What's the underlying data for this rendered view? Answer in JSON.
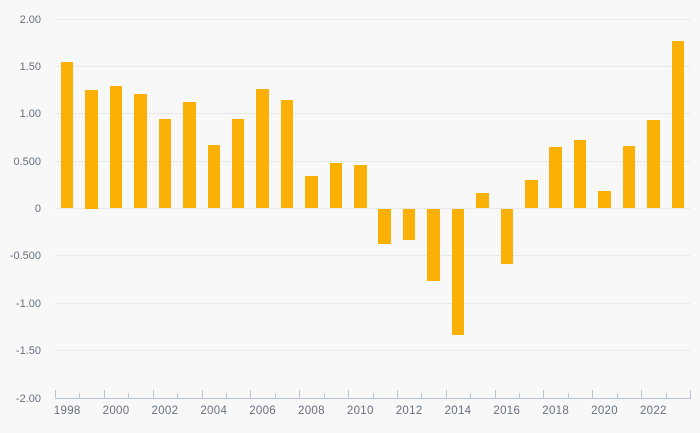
{
  "chart_data": {
    "type": "bar",
    "title": "",
    "xlabel": "",
    "ylabel": "",
    "categories": [
      "1998",
      "1999",
      "2000",
      "2001",
      "2002",
      "2003",
      "2004",
      "2005",
      "2006",
      "2007",
      "2008",
      "2009",
      "2010",
      "2011",
      "2012",
      "2013",
      "2014",
      "2015",
      "2016",
      "2017",
      "2018",
      "2019",
      "2020",
      "2021",
      "2022",
      "2023"
    ],
    "values": [
      1.55,
      1.25,
      1.29,
      1.21,
      0.94,
      1.12,
      0.67,
      0.94,
      1.26,
      1.14,
      0.34,
      0.48,
      0.46,
      -0.37,
      -0.33,
      -0.76,
      -1.34,
      0.16,
      -0.59,
      0.3,
      0.65,
      0.72,
      0.18,
      0.66,
      0.93,
      1.77
    ],
    "ylim": [
      -2,
      2
    ],
    "yticks": [
      2,
      1.5,
      1,
      0.5,
      0,
      -0.5,
      -1,
      -1.5,
      -2
    ],
    "ytick_labels": [
      "2.00",
      "1.50",
      "1.00",
      "0.500",
      "0",
      "-0.500",
      "-1.00",
      "-1.50",
      "-2.00"
    ],
    "xtick_labels": [
      "1998",
      "2000",
      "2002",
      "2004",
      "2006",
      "2008",
      "2010",
      "2012",
      "2014",
      "2016",
      "2018",
      "2020",
      "2022"
    ],
    "grid": true,
    "legend": false,
    "bar_color": "#FAB005"
  },
  "colors": {
    "background": "#f8f8f9",
    "gridline": "#e7e8ea",
    "axis": "#b9c4d8",
    "label_text": "#66707c",
    "bar": "#FAB005"
  }
}
